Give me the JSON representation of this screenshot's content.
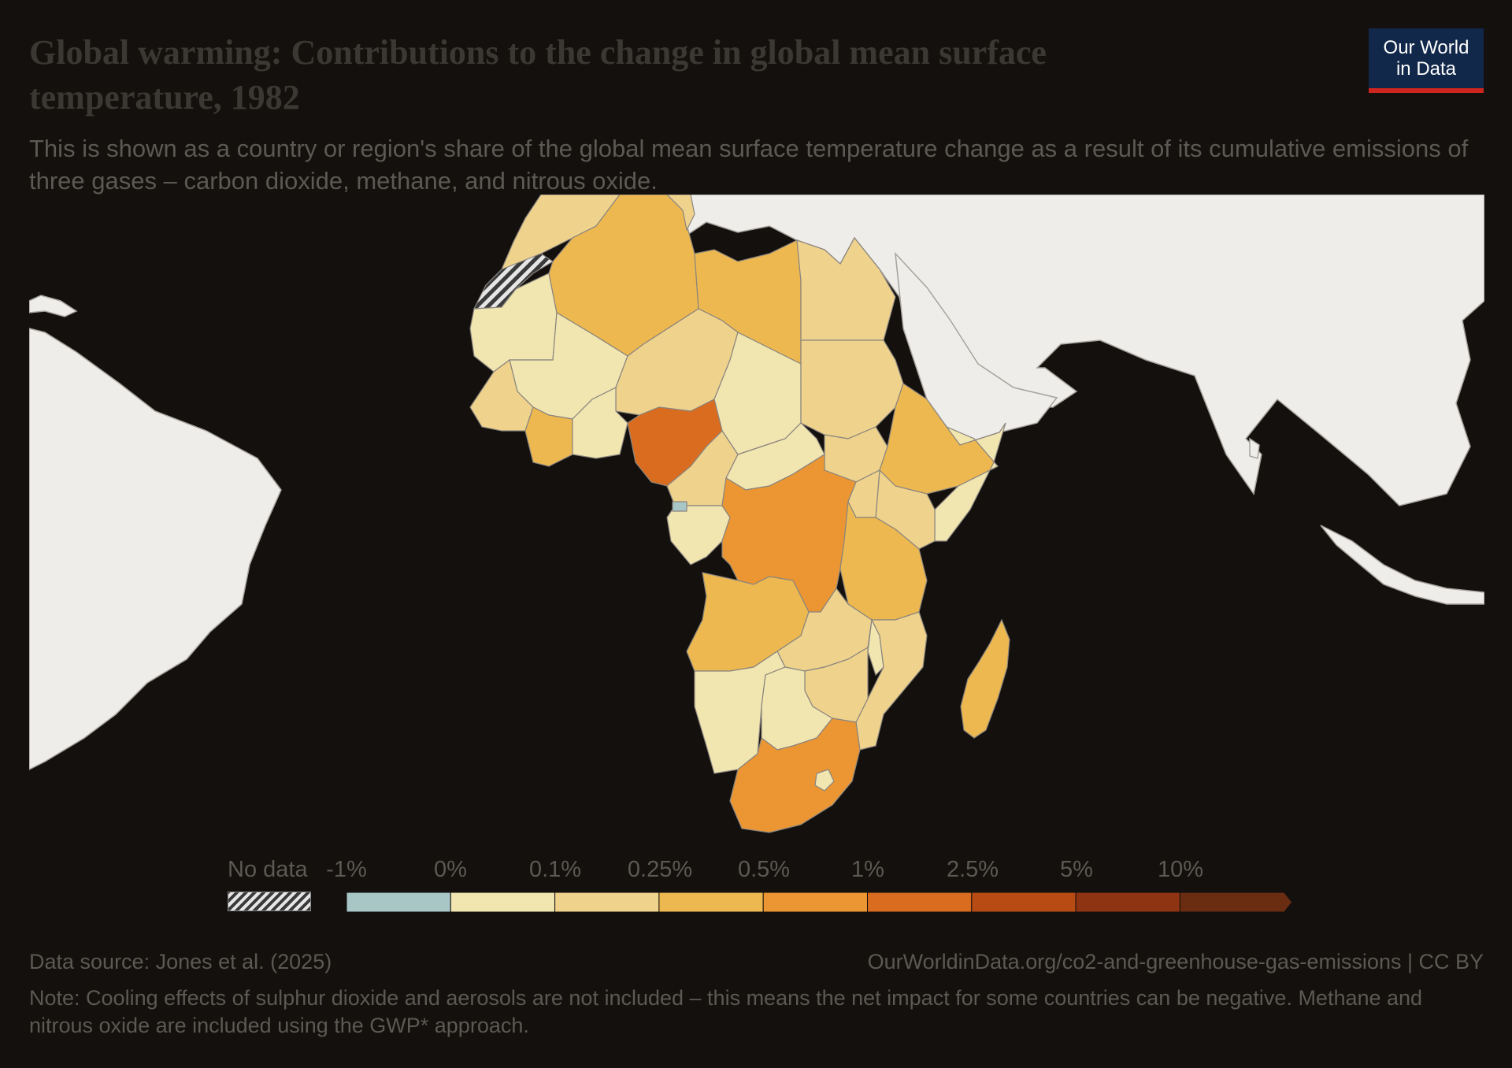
{
  "header": {
    "title": "Global warming: Contributions to the change in global mean surface temperature, 1982",
    "subtitle": "This is shown as a country or region's share of the global mean surface temperature change as a result of its cumulative emissions of three gases – carbon dioxide, methane, and nitrous oxide.",
    "logo_line1": "Our World",
    "logo_line2": "in Data"
  },
  "legend": {
    "no_data_label": "No data",
    "bins": [
      {
        "label": "-1%",
        "color": "#a9c6c6"
      },
      {
        "label": "0%",
        "color": "#f1e5b0"
      },
      {
        "label": "0.1%",
        "color": "#efd28c"
      },
      {
        "label": "0.25%",
        "color": "#edb84f"
      },
      {
        "label": "0.5%",
        "color": "#eb9633"
      },
      {
        "label": "1%",
        "color": "#d96c1f"
      },
      {
        "label": "2.5%",
        "color": "#b84b13"
      },
      {
        "label": "5%",
        "color": "#8e3412"
      },
      {
        "label": "10%",
        "color": "#6a2d12"
      }
    ]
  },
  "map": {
    "background_color": "#13100d",
    "land_no_selection_color": "#efedea",
    "border_color": "#a6a39e",
    "regions": [
      {
        "name": "Nigeria",
        "bin": "1% – 2.5%",
        "color": "#d96c1f"
      },
      {
        "name": "South Africa",
        "bin": "0.5% – 1%",
        "color": "#eb9633"
      },
      {
        "name": "Democratic Republic of Congo",
        "bin": "0.5% – 1%",
        "color": "#eb9633"
      },
      {
        "name": "Algeria",
        "bin": "0.25% – 0.5%",
        "color": "#edb84f"
      },
      {
        "name": "Libya",
        "bin": "0.25% – 0.5%",
        "color": "#edb84f"
      },
      {
        "name": "Ethiopia",
        "bin": "0.25% – 0.5%",
        "color": "#edb84f"
      },
      {
        "name": "Tanzania",
        "bin": "0.25% – 0.5%",
        "color": "#edb84f"
      },
      {
        "name": "Angola",
        "bin": "0.25% – 0.5%",
        "color": "#edb84f"
      },
      {
        "name": "Madagascar",
        "bin": "0.25% – 0.5%",
        "color": "#edb84f"
      },
      {
        "name": "Egypt",
        "bin": "0.1% – 0.25%",
        "color": "#efd28c"
      },
      {
        "name": "Sudan",
        "bin": "0.1% – 0.25%",
        "color": "#efd28c"
      },
      {
        "name": "Mozambique",
        "bin": "0.1% – 0.25%",
        "color": "#efd28c"
      },
      {
        "name": "Mali",
        "bin": "0% – 0.1%",
        "color": "#f1e5b0"
      },
      {
        "name": "Namibia",
        "bin": "0% – 0.1%",
        "color": "#f1e5b0"
      },
      {
        "name": "Equatorial Guinea",
        "bin": "-1% – 0%",
        "color": "#a9c6c6"
      },
      {
        "name": "Western Sahara",
        "bin": "No data",
        "color": "hatched"
      }
    ]
  },
  "footer": {
    "source": "Data source: Jones et al. (2025)",
    "url": "OurWorldinData.org/co2-and-greenhouse-gas-emissions | CC BY",
    "note": "Note: Cooling effects of sulphur dioxide and aerosols are not included – this means the net impact for some countries can be negative. Methane and nitrous oxide are included using the GWP* approach."
  }
}
